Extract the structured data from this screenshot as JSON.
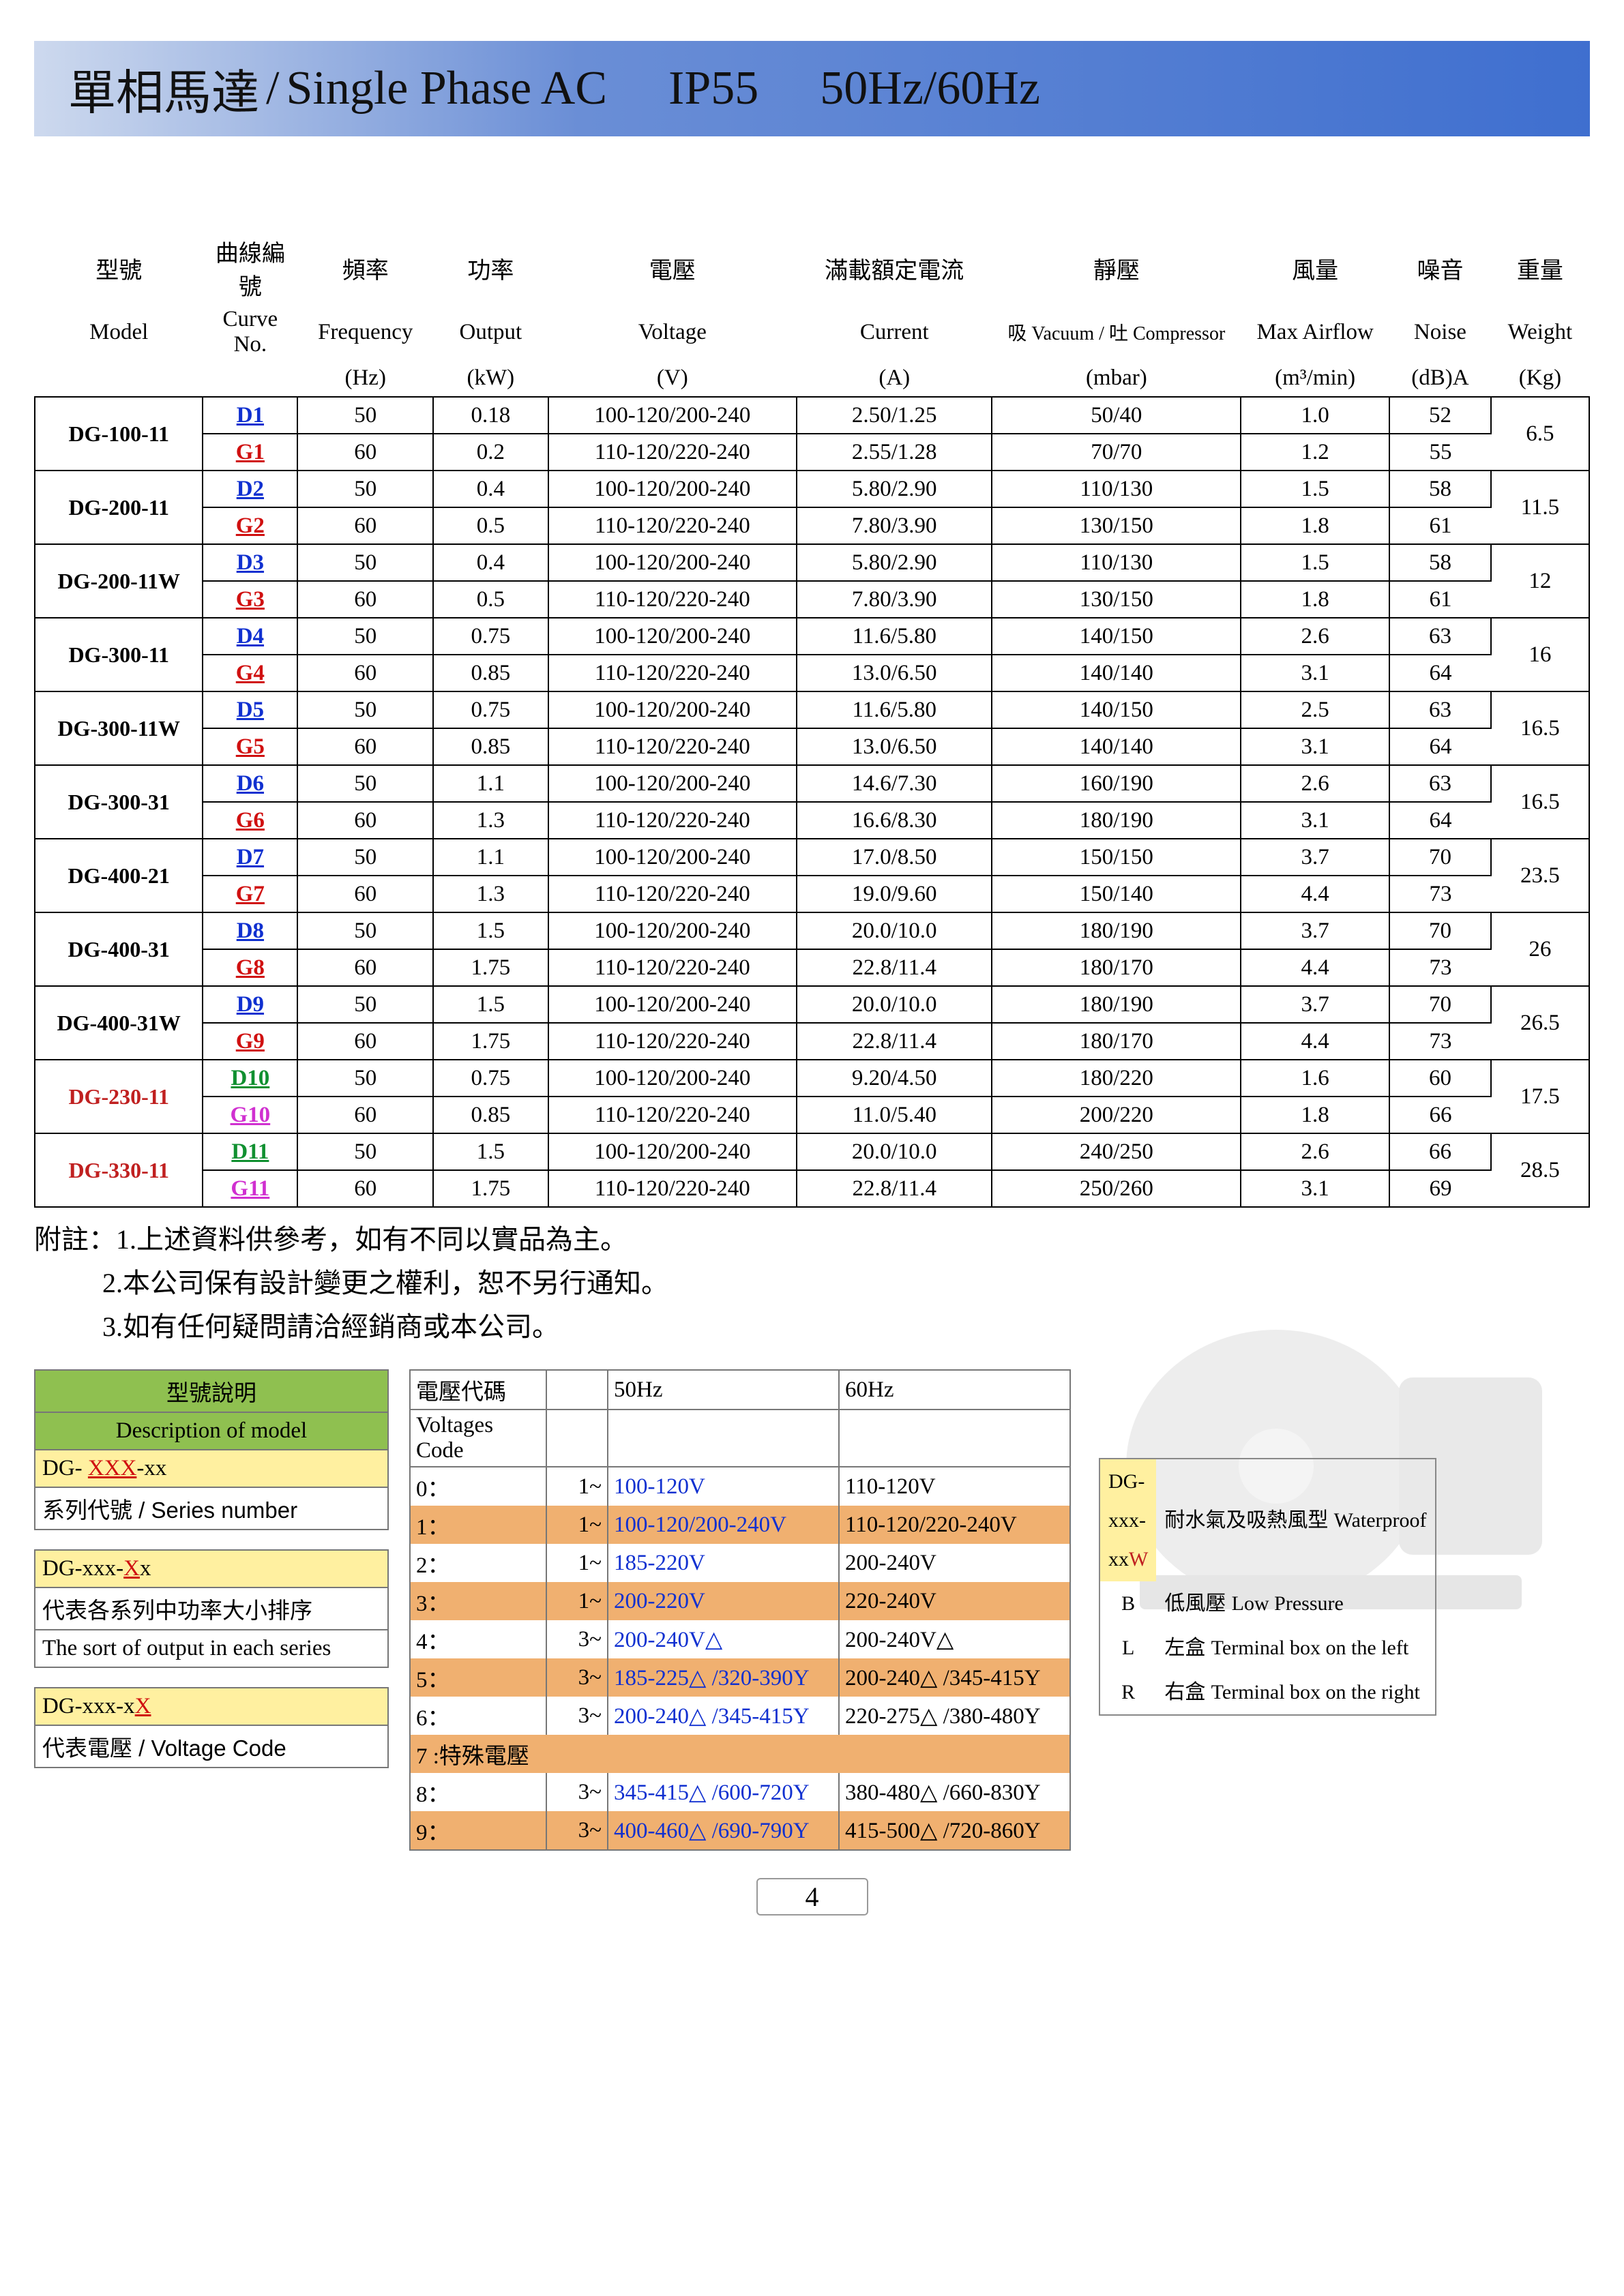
{
  "title": {
    "cn": "單相馬達",
    "sep": " / ",
    "en1": "Single Phase AC",
    "en2": "IP55",
    "en3": "50Hz/60Hz"
  },
  "headers": {
    "cn": [
      "型號",
      "曲線編號",
      "頻率",
      "功率",
      "電壓",
      "滿載額定電流",
      "靜壓",
      "風量",
      "噪音",
      "重量"
    ],
    "en": [
      "Model",
      "Curve No.",
      "Frequency",
      "Output",
      "Voltage",
      "Current",
      "吸 Vacuum / 吐 Compressor",
      "Max Airflow",
      "Noise",
      "Weight"
    ],
    "unit": [
      "",
      "",
      "(Hz)",
      "(kW)",
      "(V)",
      "(A)",
      "(mbar)",
      "(m³/min)",
      "(dB)A",
      "(Kg)"
    ]
  },
  "rows": [
    {
      "model": "DG-100-11",
      "modelColor": "",
      "curves": [
        {
          "c": "D1",
          "cc": "blue",
          "f": "50",
          "kw": "0.18",
          "v": "100-120/200-240",
          "a": "2.50/1.25",
          "m": "50/40",
          "air": "1.0",
          "db": "52"
        },
        {
          "c": "G1",
          "cc": "red",
          "f": "60",
          "kw": "0.2",
          "v": "110-120/220-240",
          "a": "2.55/1.28",
          "m": "70/70",
          "air": "1.2",
          "db": "55"
        }
      ],
      "kg": "6.5"
    },
    {
      "model": "DG-200-11",
      "modelColor": "",
      "curves": [
        {
          "c": "D2",
          "cc": "blue",
          "f": "50",
          "kw": "0.4",
          "v": "100-120/200-240",
          "a": "5.80/2.90",
          "m": "110/130",
          "air": "1.5",
          "db": "58"
        },
        {
          "c": "G2",
          "cc": "red",
          "f": "60",
          "kw": "0.5",
          "v": "110-120/220-240",
          "a": "7.80/3.90",
          "m": "130/150",
          "air": "1.8",
          "db": "61"
        }
      ],
      "kg": "11.5"
    },
    {
      "model": "DG-200-11W",
      "modelColor": "",
      "curves": [
        {
          "c": "D3",
          "cc": "blue",
          "f": "50",
          "kw": "0.4",
          "v": "100-120/200-240",
          "a": "5.80/2.90",
          "m": "110/130",
          "air": "1.5",
          "db": "58"
        },
        {
          "c": "G3",
          "cc": "red",
          "f": "60",
          "kw": "0.5",
          "v": "110-120/220-240",
          "a": "7.80/3.90",
          "m": "130/150",
          "air": "1.8",
          "db": "61"
        }
      ],
      "kg": "12"
    },
    {
      "model": "DG-300-11",
      "modelColor": "",
      "curves": [
        {
          "c": "D4",
          "cc": "blue",
          "f": "50",
          "kw": "0.75",
          "v": "100-120/200-240",
          "a": "11.6/5.80",
          "m": "140/150",
          "air": "2.6",
          "db": "63"
        },
        {
          "c": "G4",
          "cc": "red",
          "f": "60",
          "kw": "0.85",
          "v": "110-120/220-240",
          "a": "13.0/6.50",
          "m": "140/140",
          "air": "3.1",
          "db": "64"
        }
      ],
      "kg": "16"
    },
    {
      "model": "DG-300-11W",
      "modelColor": "",
      "curves": [
        {
          "c": "D5",
          "cc": "blue",
          "f": "50",
          "kw": "0.75",
          "v": "100-120/200-240",
          "a": "11.6/5.80",
          "m": "140/150",
          "air": "2.5",
          "db": "63"
        },
        {
          "c": "G5",
          "cc": "red",
          "f": "60",
          "kw": "0.85",
          "v": "110-120/220-240",
          "a": "13.0/6.50",
          "m": "140/140",
          "air": "3.1",
          "db": "64"
        }
      ],
      "kg": "16.5"
    },
    {
      "model": "DG-300-31",
      "modelColor": "",
      "curves": [
        {
          "c": "D6",
          "cc": "blue",
          "f": "50",
          "kw": "1.1",
          "v": "100-120/200-240",
          "a": "14.6/7.30",
          "m": "160/190",
          "air": "2.6",
          "db": "63"
        },
        {
          "c": "G6",
          "cc": "red",
          "f": "60",
          "kw": "1.3",
          "v": "110-120/220-240",
          "a": "16.6/8.30",
          "m": "180/190",
          "air": "3.1",
          "db": "64"
        }
      ],
      "kg": "16.5"
    },
    {
      "model": "DG-400-21",
      "modelColor": "",
      "curves": [
        {
          "c": "D7",
          "cc": "blue",
          "f": "50",
          "kw": "1.1",
          "v": "100-120/200-240",
          "a": "17.0/8.50",
          "m": "150/150",
          "air": "3.7",
          "db": "70"
        },
        {
          "c": "G7",
          "cc": "red",
          "f": "60",
          "kw": "1.3",
          "v": "110-120/220-240",
          "a": "19.0/9.60",
          "m": "150/140",
          "air": "4.4",
          "db": "73"
        }
      ],
      "kg": "23.5"
    },
    {
      "model": "DG-400-31",
      "modelColor": "",
      "curves": [
        {
          "c": "D8",
          "cc": "blue",
          "f": "50",
          "kw": "1.5",
          "v": "100-120/200-240",
          "a": "20.0/10.0",
          "m": "180/190",
          "air": "3.7",
          "db": "70"
        },
        {
          "c": "G8",
          "cc": "red",
          "f": "60",
          "kw": "1.75",
          "v": "110-120/220-240",
          "a": "22.8/11.4",
          "m": "180/170",
          "air": "4.4",
          "db": "73"
        }
      ],
      "kg": "26"
    },
    {
      "model": "DG-400-31W",
      "modelColor": "",
      "curves": [
        {
          "c": "D9",
          "cc": "blue",
          "f": "50",
          "kw": "1.5",
          "v": "100-120/200-240",
          "a": "20.0/10.0",
          "m": "180/190",
          "air": "3.7",
          "db": "70"
        },
        {
          "c": "G9",
          "cc": "red",
          "f": "60",
          "kw": "1.75",
          "v": "110-120/220-240",
          "a": "22.8/11.4",
          "m": "180/170",
          "air": "4.4",
          "db": "73"
        }
      ],
      "kg": "26.5"
    },
    {
      "model": "DG-230-11",
      "modelColor": "dred",
      "curves": [
        {
          "c": "D10",
          "cc": "green",
          "f": "50",
          "kw": "0.75",
          "v": "100-120/200-240",
          "a": "9.20/4.50",
          "m": "180/220",
          "air": "1.6",
          "db": "60"
        },
        {
          "c": "G10",
          "cc": "magenta",
          "f": "60",
          "kw": "0.85",
          "v": "110-120/220-240",
          "a": "11.0/5.40",
          "m": "200/220",
          "air": "1.8",
          "db": "66"
        }
      ],
      "kg": "17.5"
    },
    {
      "model": "DG-330-11",
      "modelColor": "dred",
      "curves": [
        {
          "c": "D11",
          "cc": "green",
          "f": "50",
          "kw": "1.5",
          "v": "100-120/200-240",
          "a": "20.0/10.0",
          "m": "240/250",
          "air": "2.6",
          "db": "66"
        },
        {
          "c": "G11",
          "cc": "magenta",
          "f": "60",
          "kw": "1.75",
          "v": "110-120/220-240",
          "a": "22.8/11.4",
          "m": "250/260",
          "air": "3.1",
          "db": "69"
        }
      ],
      "kg": "28.5"
    }
  ],
  "notes": {
    "prefix": "附註：",
    "n1": "1.上述資料供參考，如有不同以實品為主。",
    "n2": "2.本公司保有設計變更之權利，恕不另行通知。",
    "n3": "3.如有任何疑問請洽經銷商或本公司。"
  },
  "desc": {
    "head_cn": "型號說明",
    "head_en": "Description of model",
    "r1_code": "DG- ",
    "r1_hl": "XXX",
    "r1_tail": "-xx",
    "r1_txt": "系列代號  / Series number",
    "r2_code": "DG-xxx-",
    "r2_hl": "X",
    "r2_tail": "x",
    "r2_txt1": "代表各系列中功率大小排序",
    "r2_txt2": "The sort of output in each series",
    "r3_code": "DG-xxx-x",
    "r3_hl": "X",
    "r3_txt": "代表電壓  / Voltage Code"
  },
  "volt": {
    "h_cn": "電壓代碼",
    "h50": "50Hz",
    "h60": "60Hz",
    "h_en": "Voltages Code",
    "rows": [
      {
        "code": "0：",
        "ph": "1~",
        "v50": "100-120V",
        "v60": "110-120V",
        "hl": false
      },
      {
        "code": "1：",
        "ph": "1~",
        "v50": "100-120/200-240V",
        "v60": "110-120/220-240V",
        "hl": true
      },
      {
        "code": "2：",
        "ph": "1~",
        "v50": "185-220V",
        "v60": "200-240V",
        "hl": false
      },
      {
        "code": "3：",
        "ph": "1~",
        "v50": "200-220V",
        "v60": "220-240V",
        "hl": true
      },
      {
        "code": "4：",
        "ph": "3~",
        "v50": "200-240V△",
        "v60": "200-240V△",
        "hl": false
      },
      {
        "code": "5：",
        "ph": "3~",
        "v50": "185-225△ /320-390Y",
        "v60": "200-240△ /345-415Y",
        "hl": true
      },
      {
        "code": "6：",
        "ph": "3~",
        "v50": "200-240△ /345-415Y",
        "v60": "220-275△ /380-480Y",
        "hl": false
      },
      {
        "code": "7 :特殊電壓",
        "ph": "",
        "v50": "",
        "v60": "",
        "hl": true
      },
      {
        "code": "8：",
        "ph": "3~",
        "v50": "345-415△ /600-720Y",
        "v60": "380-480△ /660-830Y",
        "hl": false
      },
      {
        "code": "9：",
        "ph": "3~",
        "v50": "400-460△ /690-790Y",
        "v60": "415-500△ /720-860Y",
        "hl": true
      }
    ]
  },
  "suffix": [
    {
      "code": "DG-xxx-xx",
      "codeHl": "W",
      "codeColor": "dred",
      "cn": "耐水氣及吸熱風型",
      "en": "Waterproof"
    },
    {
      "code": "B",
      "codeHl": "",
      "codeColor": "",
      "cn": "低風壓",
      "en": "Low Pressure"
    },
    {
      "code": "L",
      "codeHl": "",
      "codeColor": "",
      "cn": "左盒",
      "en": "Terminal box on the left"
    },
    {
      "code": "R",
      "codeHl": "",
      "codeColor": "",
      "cn": "右盒",
      "en": "Terminal box on the right"
    }
  ],
  "pageNum": "4",
  "colWidths": [
    "250",
    "140",
    "200",
    "170",
    "370",
    "290",
    "370",
    "220",
    "150",
    "145"
  ]
}
